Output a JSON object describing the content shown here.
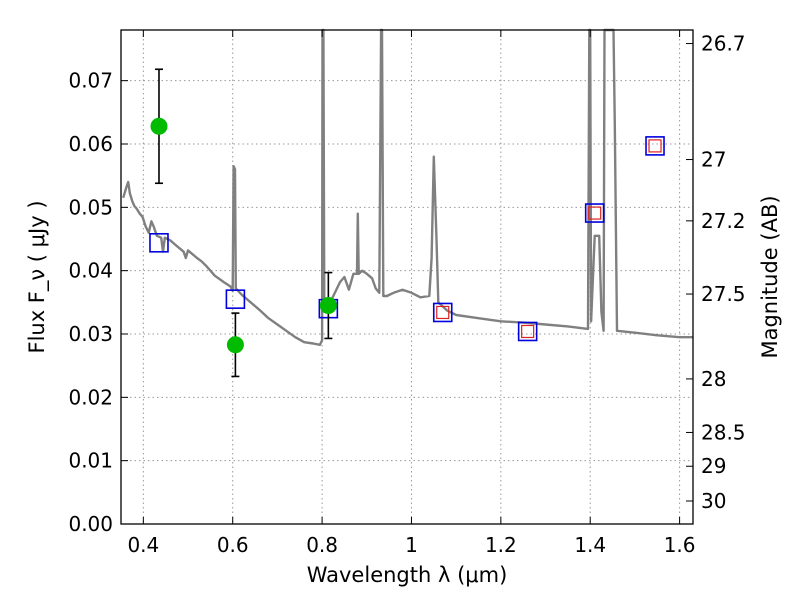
{
  "chart_data": {
    "type": "scatter",
    "xlabel": "Wavelength  λ (μm)",
    "ylabel": "Flux  F_ν  ( μJy )",
    "ylabel_right": "Magnitude (AB)",
    "xlim": [
      0.35,
      1.63
    ],
    "ylim": [
      0.0,
      0.078
    ],
    "grid": true,
    "x_ticks": [
      {
        "value": 0.4,
        "label": "0.4"
      },
      {
        "value": 0.6,
        "label": "0.6"
      },
      {
        "value": 0.8,
        "label": "0.8"
      },
      {
        "value": 1.0,
        "label": "1"
      },
      {
        "value": 1.2,
        "label": "1.2"
      },
      {
        "value": 1.4,
        "label": "1.4"
      },
      {
        "value": 1.6,
        "label": "1.6"
      }
    ],
    "y_ticks": [
      {
        "value": 0.0,
        "label": "0.00"
      },
      {
        "value": 0.01,
        "label": "0.01"
      },
      {
        "value": 0.02,
        "label": "0.02"
      },
      {
        "value": 0.03,
        "label": "0.03"
      },
      {
        "value": 0.04,
        "label": "0.04"
      },
      {
        "value": 0.05,
        "label": "0.05"
      },
      {
        "value": 0.06,
        "label": "0.06"
      },
      {
        "value": 0.07,
        "label": "0.07"
      }
    ],
    "right_ticks": [
      {
        "mag": 26.7,
        "label": "26.7"
      },
      {
        "mag": 27.0,
        "label": "27"
      },
      {
        "mag": 27.2,
        "label": "27.2"
      },
      {
        "mag": 27.5,
        "label": "27.5"
      },
      {
        "mag": 28.0,
        "label": "28"
      },
      {
        "mag": 28.5,
        "label": "28.5"
      },
      {
        "mag": 29.0,
        "label": "29"
      },
      {
        "mag": 30.0,
        "label": "30"
      }
    ],
    "colors": {
      "model_line": "#808080",
      "observed": "#00bb00",
      "model_box": "#0000dd",
      "inner_box": "#dd2222",
      "error_bar": "#000000",
      "grid": "#999999"
    },
    "observed_points": [
      {
        "x": 0.435,
        "y": 0.0628,
        "yerr_low": 0.009,
        "yerr_high": 0.009
      },
      {
        "x": 0.606,
        "y": 0.0283,
        "yerr_low": 0.005,
        "yerr_high": 0.005
      },
      {
        "x": 0.814,
        "y": 0.0345,
        "yerr_low": 0.0052,
        "yerr_high": 0.0052
      }
    ],
    "model_photometry": [
      {
        "x": 0.435,
        "y": 0.0444,
        "inner": false
      },
      {
        "x": 0.606,
        "y": 0.0355,
        "inner": false
      },
      {
        "x": 0.814,
        "y": 0.034,
        "inner": false
      },
      {
        "x": 1.07,
        "y": 0.0334,
        "inner": true
      },
      {
        "x": 1.26,
        "y": 0.0304,
        "inner": true
      },
      {
        "x": 1.41,
        "y": 0.0491,
        "inner": true
      },
      {
        "x": 1.545,
        "y": 0.0597,
        "inner": true
      }
    ],
    "model_spectrum": [
      [
        0.355,
        0.0515
      ],
      [
        0.362,
        0.0532
      ],
      [
        0.366,
        0.054
      ],
      [
        0.37,
        0.0522
      ],
      [
        0.375,
        0.051
      ],
      [
        0.38,
        0.0502
      ],
      [
        0.385,
        0.0498
      ],
      [
        0.392,
        0.049
      ],
      [
        0.398,
        0.0485
      ],
      [
        0.405,
        0.047
      ],
      [
        0.412,
        0.046
      ],
      [
        0.418,
        0.0478
      ],
      [
        0.423,
        0.047
      ],
      [
        0.43,
        0.0455
      ],
      [
        0.44,
        0.0452
      ],
      [
        0.444,
        0.043
      ],
      [
        0.448,
        0.0452
      ],
      [
        0.46,
        0.0448
      ],
      [
        0.47,
        0.0442
      ],
      [
        0.48,
        0.0436
      ],
      [
        0.49,
        0.043
      ],
      [
        0.495,
        0.042
      ],
      [
        0.5,
        0.0432
      ],
      [
        0.52,
        0.042
      ],
      [
        0.53,
        0.0415
      ],
      [
        0.54,
        0.0408
      ],
      [
        0.55,
        0.04
      ],
      [
        0.56,
        0.0392
      ],
      [
        0.58,
        0.0382
      ],
      [
        0.595,
        0.0375
      ],
      [
        0.6,
        0.0368
      ],
      [
        0.602,
        0.0565
      ],
      [
        0.605,
        0.056
      ],
      [
        0.607,
        0.0372
      ],
      [
        0.62,
        0.0362
      ],
      [
        0.64,
        0.035
      ],
      [
        0.66,
        0.0338
      ],
      [
        0.68,
        0.0325
      ],
      [
        0.7,
        0.0315
      ],
      [
        0.72,
        0.0305
      ],
      [
        0.74,
        0.0295
      ],
      [
        0.76,
        0.0287
      ],
      [
        0.78,
        0.0285
      ],
      [
        0.795,
        0.0283
      ],
      [
        0.8,
        0.029
      ],
      [
        0.801,
        0.078
      ],
      [
        0.803,
        0.078
      ],
      [
        0.805,
        0.0335
      ],
      [
        0.812,
        0.034
      ],
      [
        0.825,
        0.036
      ],
      [
        0.84,
        0.0382
      ],
      [
        0.85,
        0.039
      ],
      [
        0.86,
        0.037
      ],
      [
        0.87,
        0.0395
      ],
      [
        0.878,
        0.0395
      ],
      [
        0.88,
        0.049
      ],
      [
        0.882,
        0.0395
      ],
      [
        0.89,
        0.04
      ],
      [
        0.9,
        0.0395
      ],
      [
        0.912,
        0.0388
      ],
      [
        0.92,
        0.0372
      ],
      [
        0.928,
        0.0365
      ],
      [
        0.932,
        0.078
      ],
      [
        0.934,
        0.078
      ],
      [
        0.937,
        0.036
      ],
      [
        0.945,
        0.036
      ],
      [
        0.96,
        0.0365
      ],
      [
        0.98,
        0.037
      ],
      [
        1.0,
        0.0365
      ],
      [
        1.02,
        0.0358
      ],
      [
        1.04,
        0.036
      ],
      [
        1.045,
        0.042
      ],
      [
        1.05,
        0.058
      ],
      [
        1.056,
        0.045
      ],
      [
        1.06,
        0.035
      ],
      [
        1.08,
        0.0337
      ],
      [
        1.1,
        0.033
      ],
      [
        1.15,
        0.0325
      ],
      [
        1.2,
        0.032
      ],
      [
        1.25,
        0.0318
      ],
      [
        1.3,
        0.0315
      ],
      [
        1.35,
        0.0312
      ],
      [
        1.395,
        0.0308
      ],
      [
        1.398,
        0.078
      ],
      [
        1.4,
        0.078
      ],
      [
        1.402,
        0.032
      ],
      [
        1.41,
        0.0455
      ],
      [
        1.42,
        0.0455
      ],
      [
        1.425,
        0.0335
      ],
      [
        1.43,
        0.0305
      ],
      [
        1.432,
        0.078
      ],
      [
        1.434,
        0.078
      ],
      [
        1.437,
        0.078
      ],
      [
        1.452,
        0.078
      ],
      [
        1.455,
        0.063
      ],
      [
        1.46,
        0.0305
      ],
      [
        1.5,
        0.0302
      ],
      [
        1.55,
        0.0298
      ],
      [
        1.6,
        0.0295
      ],
      [
        1.63,
        0.0295
      ]
    ]
  }
}
